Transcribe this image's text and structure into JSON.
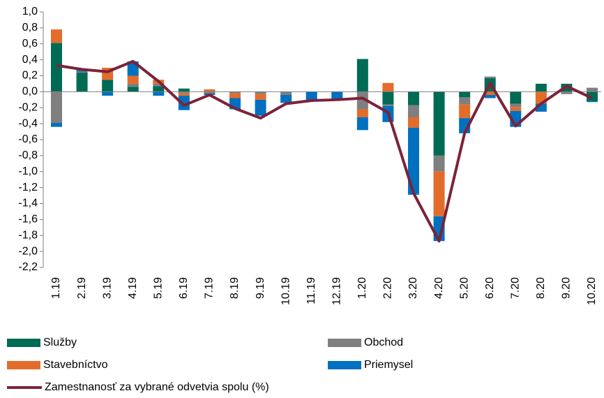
{
  "chart_data": {
    "type": "bar",
    "stacked": true,
    "categories": [
      "1.19",
      "2.19",
      "3.19",
      "4.19",
      "5.19",
      "6.19",
      "7.19",
      "8.19",
      "9.19",
      "10.19",
      "11.19",
      "12.19",
      "1.20",
      "2.20",
      "3.20",
      "4.20",
      "5.20",
      "6.20",
      "7.20",
      "8.20",
      "9.20",
      "10.20"
    ],
    "series": [
      {
        "name": "Služby",
        "color": "#006b54",
        "values": [
          0.61,
          0.24,
          0.15,
          0.06,
          0.07,
          0.04,
          0,
          0,
          0,
          0,
          0,
          0,
          0.41,
          -0.16,
          -0.17,
          -0.8,
          -0.07,
          0.17,
          -0.15,
          0.1,
          0.1,
          -0.12
        ]
      },
      {
        "name": "Obchod",
        "color": "#7f7f7f",
        "values": [
          -0.39,
          0.01,
          0,
          0.04,
          0.03,
          -0.02,
          -0.02,
          -0.02,
          -0.03,
          -0.04,
          0,
          0,
          -0.22,
          -0.02,
          -0.15,
          -0.2,
          -0.09,
          0.02,
          -0.04,
          0,
          -0.03,
          0.05
        ]
      },
      {
        "name": "Stavebníctvo",
        "color": "#e46c2a",
        "values": [
          0.17,
          0,
          0.15,
          0.1,
          0.05,
          -0.03,
          0.03,
          -0.06,
          -0.07,
          0,
          0,
          0,
          -0.1,
          0.11,
          -0.13,
          -0.56,
          -0.17,
          -0.04,
          -0.05,
          -0.15,
          0,
          0
        ]
      },
      {
        "name": "Priemysel",
        "color": "#0070c0",
        "values": [
          -0.05,
          0.03,
          -0.05,
          0.18,
          -0.05,
          -0.18,
          -0.02,
          -0.14,
          -0.2,
          -0.1,
          -0.1,
          -0.1,
          -0.16,
          -0.2,
          -0.84,
          -0.31,
          -0.19,
          -0.04,
          -0.2,
          -0.1,
          0,
          -0.01
        ]
      },
      {
        "name": "Zamestnanosť za vybrané odvetvia spolu (%)",
        "type": "line",
        "color": "#7b2339",
        "values": [
          0.33,
          0.28,
          0.25,
          0.38,
          0.13,
          -0.17,
          -0.04,
          -0.21,
          -0.33,
          -0.15,
          -0.11,
          -0.1,
          -0.08,
          -0.26,
          -1.27,
          -1.87,
          -0.52,
          0.11,
          -0.43,
          -0.15,
          0.07,
          -0.08
        ]
      }
    ],
    "ylim": [
      -2.2,
      1.0
    ],
    "yticks": [
      {
        "value": 1.0,
        "label": "1,0"
      },
      {
        "value": 0.8,
        "label": "0,8"
      },
      {
        "value": 0.6,
        "label": "0,6"
      },
      {
        "value": 0.4,
        "label": "0,4"
      },
      {
        "value": 0.2,
        "label": "0,2"
      },
      {
        "value": 0,
        "label": "0,0"
      },
      {
        "value": -0.2,
        "label": "-0,2"
      },
      {
        "value": -0.4,
        "label": "-0,4"
      },
      {
        "value": -0.6,
        "label": "-0,6"
      },
      {
        "value": -0.8,
        "label": "-0,8"
      },
      {
        "value": -1.0,
        "label": "-1,0"
      },
      {
        "value": -1.2,
        "label": "-1,2"
      },
      {
        "value": -1.4,
        "label": "-1,4"
      },
      {
        "value": -1.6,
        "label": "-1,6"
      },
      {
        "value": -1.8,
        "label": "-1,8"
      },
      {
        "value": -2.0,
        "label": "-2,0"
      },
      {
        "value": -2.2,
        "label": "-2,2"
      }
    ],
    "grid": false
  }
}
